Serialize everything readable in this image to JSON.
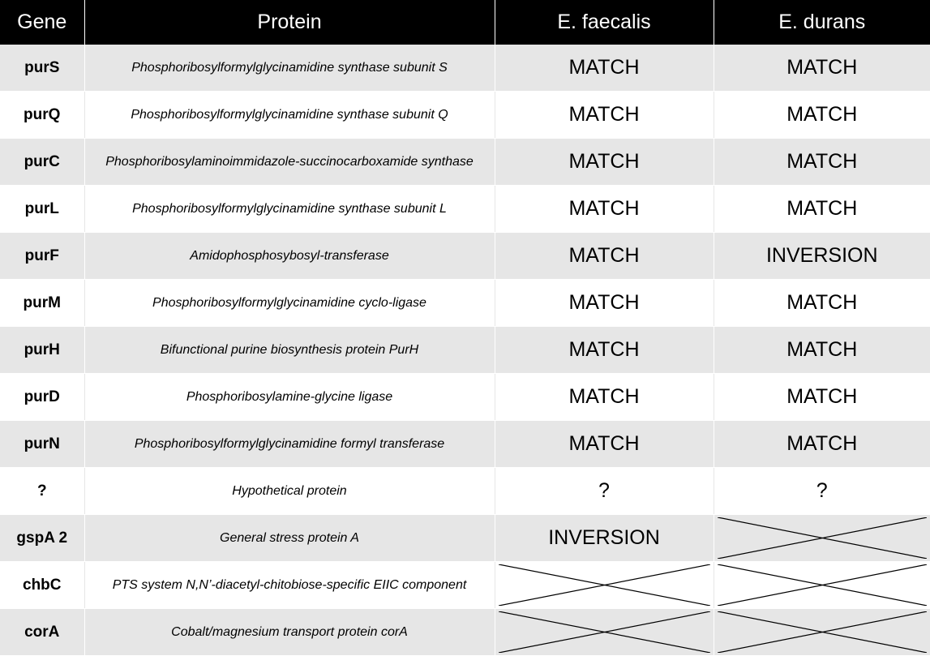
{
  "headers": {
    "gene": "Gene",
    "protein": "Protein",
    "e_faecalis": "E. faecalis",
    "e_durans": "E. durans"
  },
  "rows": [
    {
      "gene": "purS",
      "protein": "Phosphoribosylformylglycinamidine synthase subunit S",
      "e_faecalis": "MATCH",
      "e_durans": "MATCH"
    },
    {
      "gene": "purQ",
      "protein": "Phosphoribosylformylglycinamidine synthase subunit Q",
      "e_faecalis": "MATCH",
      "e_durans": "MATCH"
    },
    {
      "gene": "purC",
      "protein": "Phosphoribosylaminoimmidazole-succinocarboxamide synthase",
      "e_faecalis": "MATCH",
      "e_durans": "MATCH"
    },
    {
      "gene": "purL",
      "protein": "Phosphoribosylformylglycinamidine synthase subunit L",
      "e_faecalis": "MATCH",
      "e_durans": "MATCH"
    },
    {
      "gene": "purF",
      "protein": "Amidophosphosybosyl-transferase",
      "e_faecalis": "MATCH",
      "e_durans": "INVERSION"
    },
    {
      "gene": "purM",
      "protein": "Phosphoribosylformylglycinamidine cyclo-ligase",
      "e_faecalis": "MATCH",
      "e_durans": "MATCH"
    },
    {
      "gene": "purH",
      "protein": "Bifunctional purine biosynthesis protein PurH",
      "e_faecalis": "MATCH",
      "e_durans": "MATCH"
    },
    {
      "gene": "purD",
      "protein": "Phosphoribosylamine-glycine ligase",
      "e_faecalis": "MATCH",
      "e_durans": "MATCH"
    },
    {
      "gene": "purN",
      "protein": "Phosphoribosylformylglycinamidine formyl transferase",
      "e_faecalis": "MATCH",
      "e_durans": "MATCH"
    },
    {
      "gene": "?",
      "protein": "Hypothetical protein",
      "e_faecalis": "?",
      "e_durans": "?"
    },
    {
      "gene": "gspA 2",
      "protein": "General stress protein A",
      "e_faecalis": "INVERSION",
      "e_durans": null
    },
    {
      "gene": "chbC",
      "protein": "PTS system N,N’-diacetyl-chitobiose-specific EIIC component",
      "e_faecalis": null,
      "e_durans": null
    },
    {
      "gene": "corA",
      "protein": "Cobalt/magnesium transport protein corA",
      "e_faecalis": null,
      "e_durans": null
    }
  ]
}
